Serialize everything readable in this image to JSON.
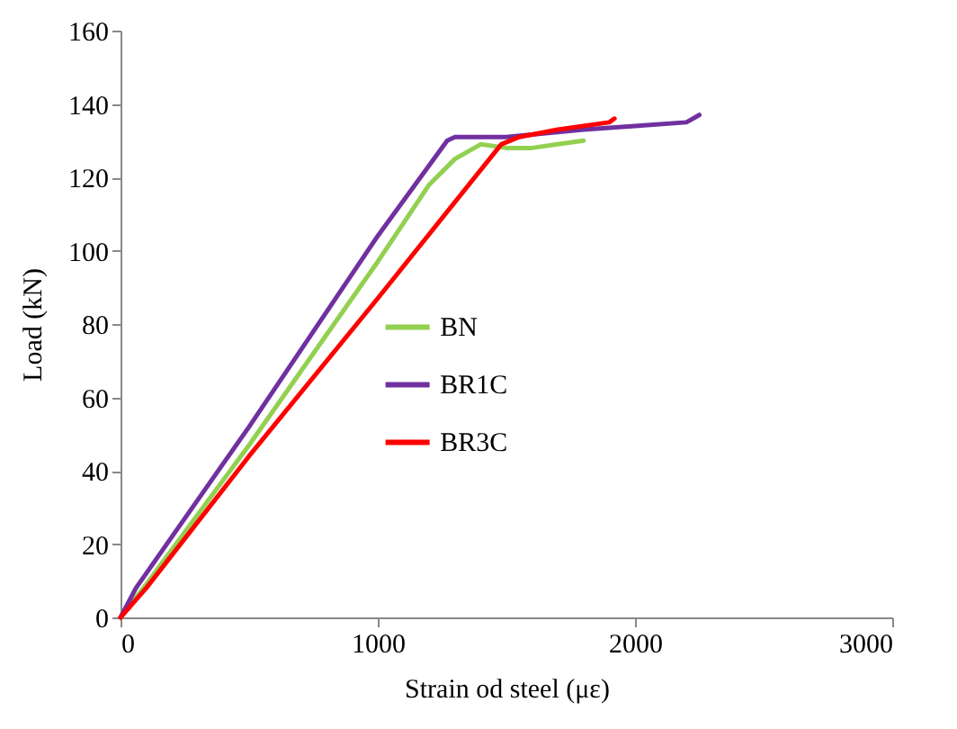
{
  "chart_data": {
    "type": "line",
    "xlabel": "Strain  od steel (με)",
    "ylabel": "Load (kN)",
    "xlim": [
      0,
      3000
    ],
    "xticks": [
      0,
      1000,
      2000,
      3000
    ],
    "ylim": [
      0,
      160
    ],
    "yticks": [
      0,
      20,
      40,
      60,
      80,
      100,
      120,
      140,
      160
    ],
    "grid": false,
    "legend": "center",
    "marker": "none",
    "line_style": "solid",
    "series": [
      {
        "name": "BN",
        "color": "#92d050",
        "x": [
          0,
          100,
          500,
          1000,
          1200,
          1300,
          1400,
          1500,
          1600,
          1700,
          1800
        ],
        "values": [
          0,
          9,
          47,
          97,
          118,
          125,
          129,
          128,
          128,
          129,
          130
        ]
      },
      {
        "name": "BR1C",
        "color": "#7030a0",
        "x": [
          0,
          60,
          500,
          1000,
          1270,
          1300,
          1500,
          1800,
          2000,
          2200,
          2250
        ],
        "values": [
          0,
          8,
          52,
          104,
          130,
          131,
          131,
          133,
          134,
          135,
          137
        ]
      },
      {
        "name": "BR3C",
        "color": "#ff0000",
        "x": [
          0,
          100,
          500,
          1000,
          1480,
          1550,
          1700,
          1900,
          1920
        ],
        "values": [
          0,
          8,
          44,
          87,
          129,
          131,
          133,
          135,
          136
        ]
      }
    ]
  }
}
